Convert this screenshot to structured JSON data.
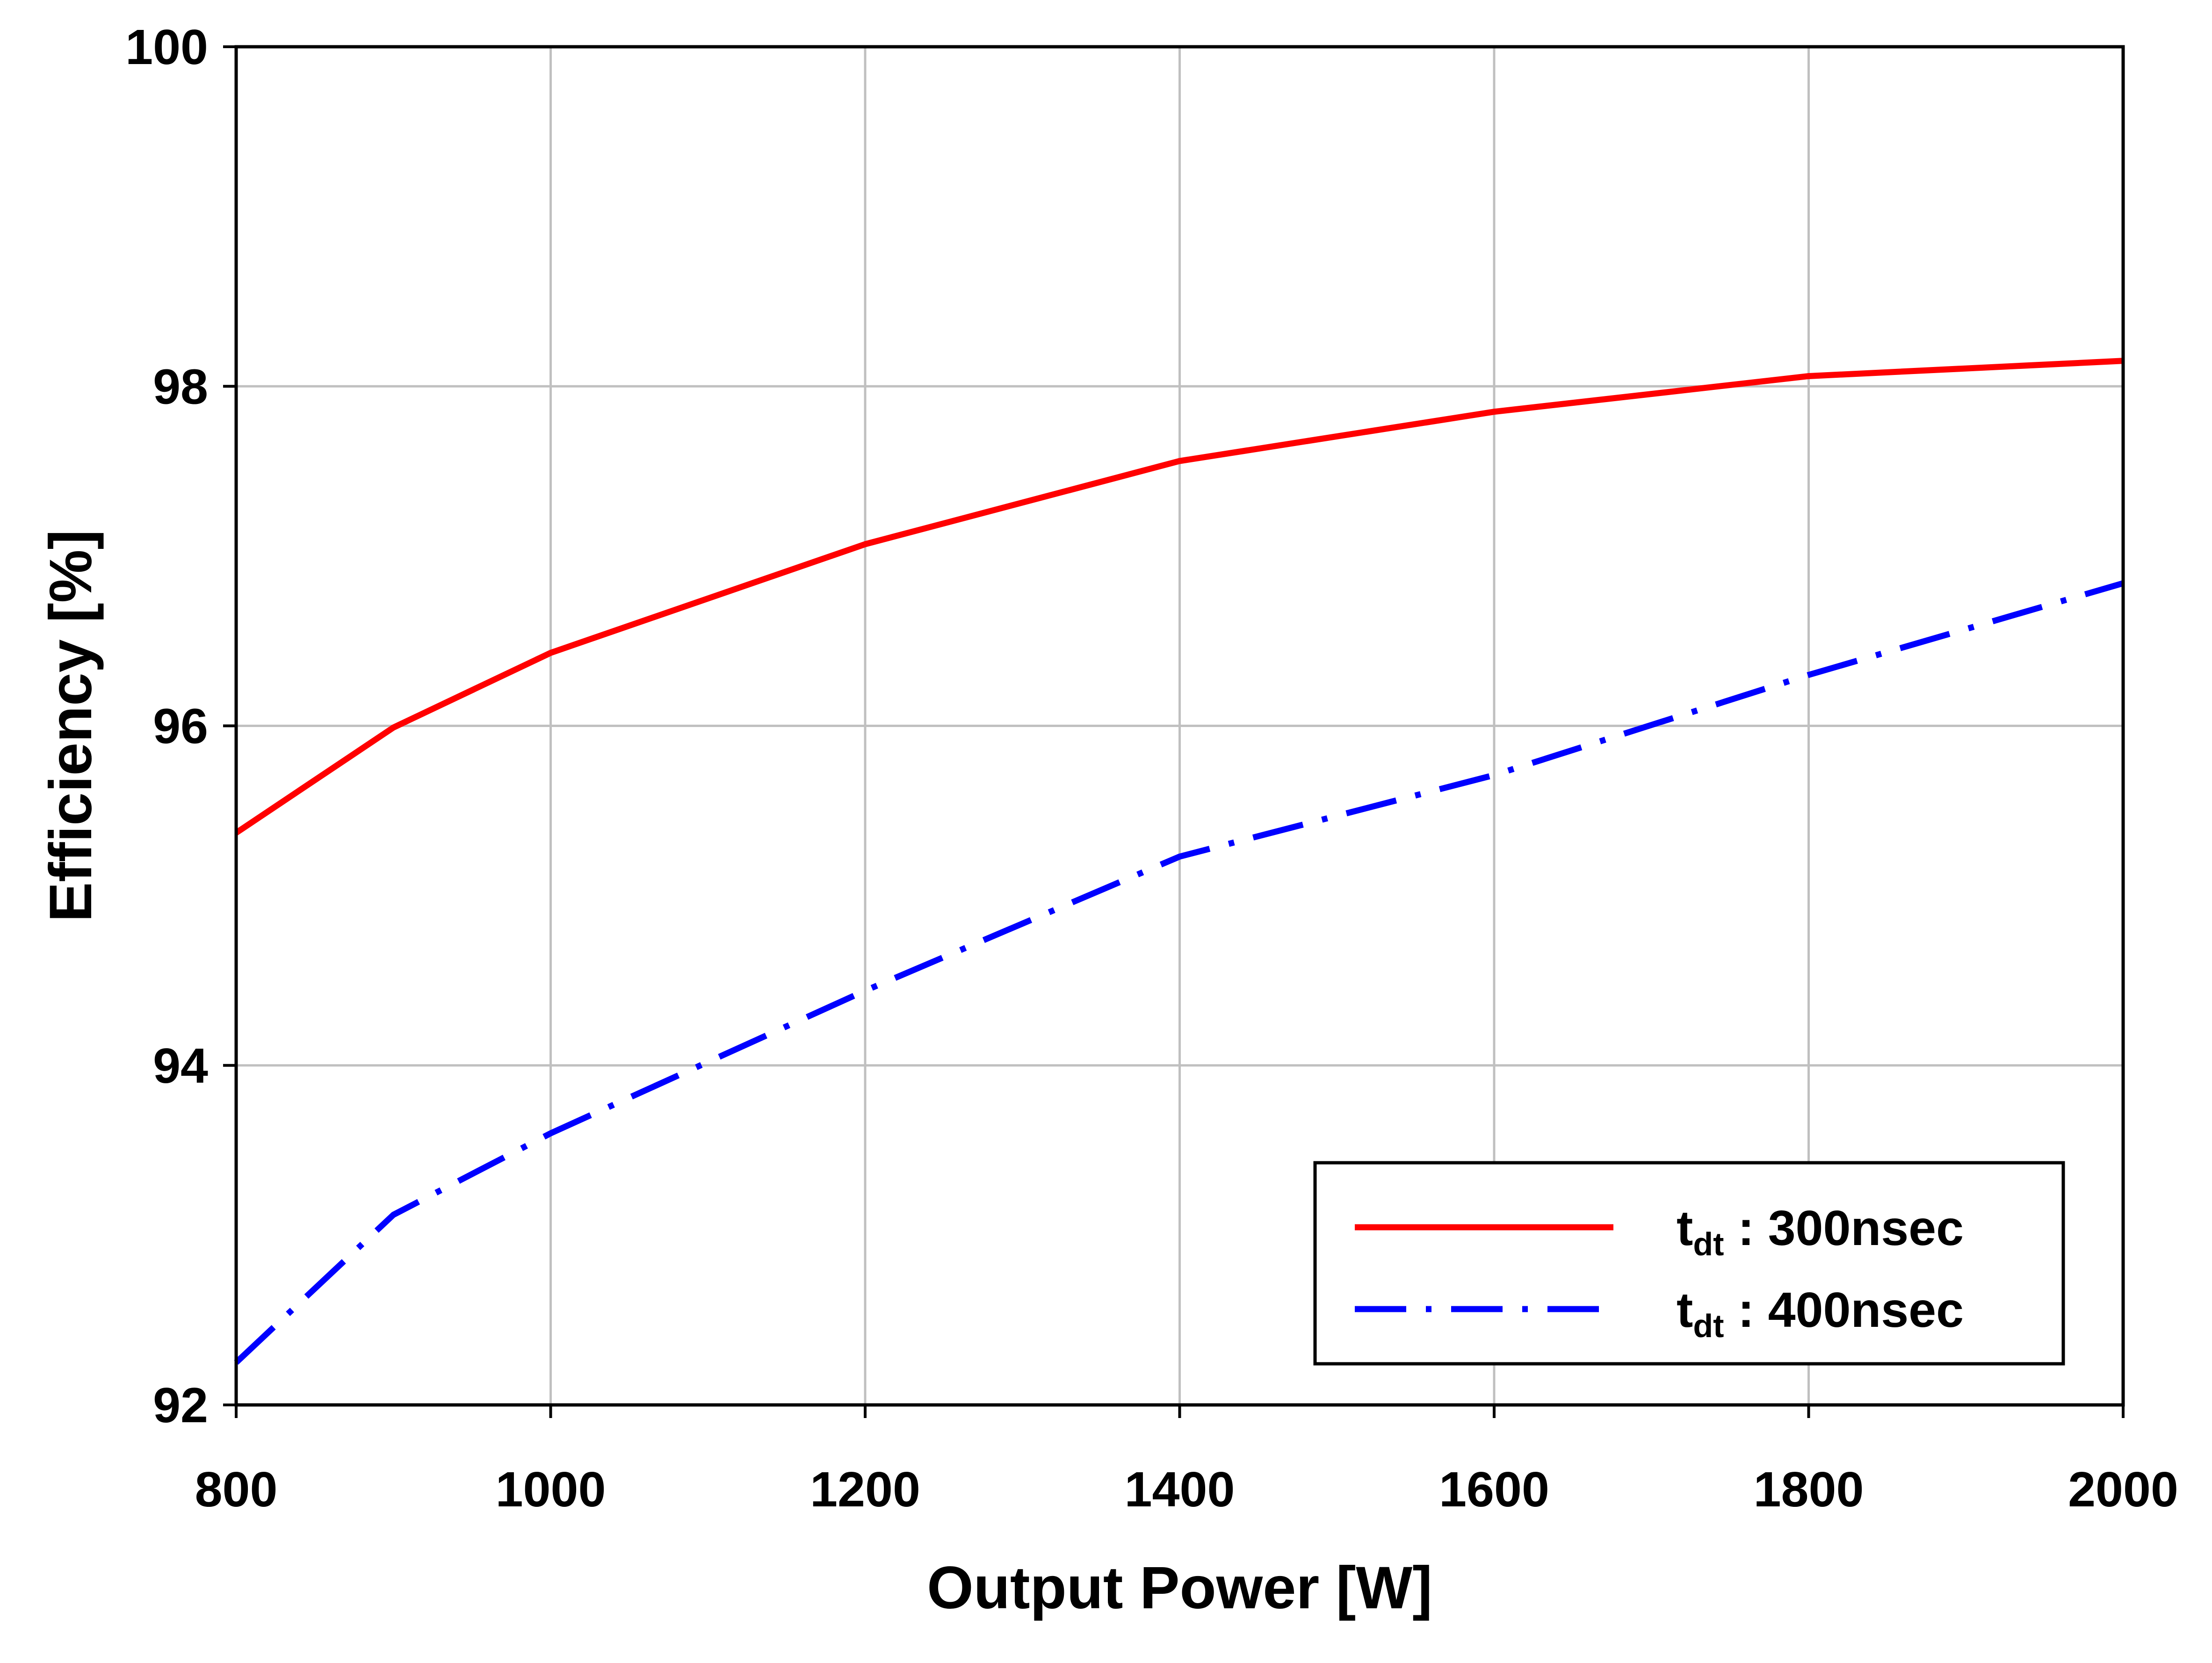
{
  "chart_data": {
    "type": "line",
    "xlabel": "Output Power [W]",
    "ylabel": "Efficiency [%]",
    "xlim": [
      800,
      2000
    ],
    "ylim": [
      92,
      100
    ],
    "xticks": [
      800,
      1000,
      1200,
      1400,
      1600,
      1800,
      2000
    ],
    "yticks": [
      92,
      94,
      96,
      98,
      100
    ],
    "grid": true,
    "legend_position": "bottom-right",
    "series": [
      {
        "name_main": "t",
        "name_sub": "dt",
        "name_suffix": " : 300nsec",
        "color": "#ff0000",
        "style": "solid",
        "x": [
          800,
          900,
          1000,
          1200,
          1400,
          1600,
          1800,
          2000
        ],
        "y": [
          95.37,
          95.99,
          96.43,
          97.07,
          97.56,
          97.85,
          98.06,
          98.15
        ]
      },
      {
        "name_main": "t",
        "name_sub": "dt",
        "name_suffix": " : 400nsec",
        "color": "#0000ff",
        "style": "dash-dot",
        "x": [
          800,
          900,
          1000,
          1200,
          1400,
          1600,
          1800,
          2000
        ],
        "y": [
          92.25,
          93.12,
          93.6,
          94.44,
          95.23,
          95.71,
          96.3,
          96.84
        ]
      }
    ]
  }
}
